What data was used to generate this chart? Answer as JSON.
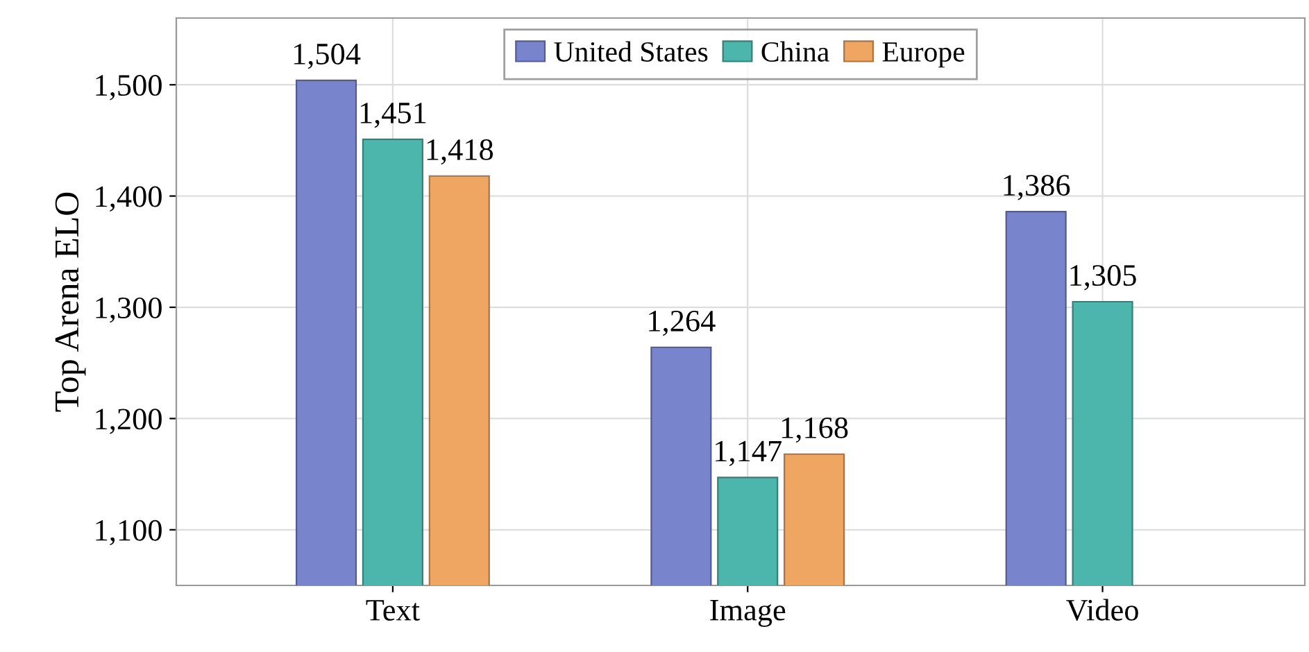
{
  "chart_data": {
    "type": "bar",
    "ylabel": "Top Arena ELO",
    "categories": [
      "Text",
      "Image",
      "Video"
    ],
    "series": [
      {
        "name": "United States",
        "color": "#7884cc",
        "values": [
          1504,
          1264,
          1386
        ],
        "value_labels": [
          "1,504",
          "1,264",
          "1,386"
        ]
      },
      {
        "name": "China",
        "color": "#4db6ac",
        "values": [
          1451,
          1147,
          1305
        ],
        "value_labels": [
          "1,451",
          "1,147",
          "1,305"
        ]
      },
      {
        "name": "Europe",
        "color": "#f0a663",
        "values": [
          1418,
          1168,
          null
        ],
        "value_labels": [
          "1,418",
          "1,168",
          null
        ]
      }
    ],
    "ylim": [
      1050,
      1560
    ],
    "yticks": [
      {
        "value": 1100,
        "label": "1,100"
      },
      {
        "value": 1200,
        "label": "1,200"
      },
      {
        "value": 1300,
        "label": "1,300"
      },
      {
        "value": 1400,
        "label": "1,400"
      },
      {
        "value": 1500,
        "label": "1,500"
      }
    ],
    "grid": true,
    "legend": "top"
  }
}
